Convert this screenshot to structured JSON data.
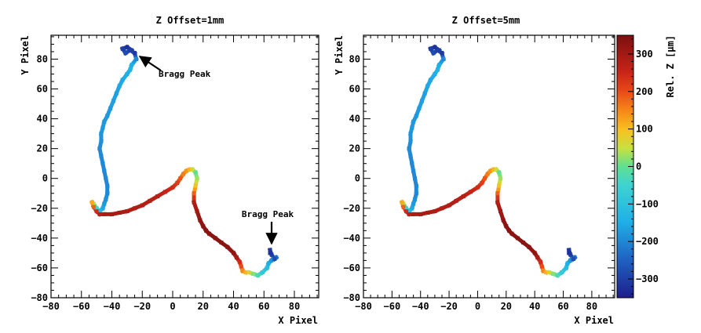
{
  "chart_data": [
    {
      "type": "scatter",
      "title": "Z Offset=1mm",
      "xlabel": "X Pixel",
      "ylabel": "Y Pixel",
      "xlim": [
        -80,
        96
      ],
      "ylim": [
        -80,
        96
      ],
      "xticks": [
        -80,
        -60,
        -40,
        -20,
        0,
        20,
        40,
        60,
        80
      ],
      "yticks": [
        -80,
        -60,
        -40,
        -20,
        0,
        20,
        40,
        60,
        80
      ],
      "grid": false,
      "track": {
        "x": [
          -27,
          -30,
          -33,
          -31,
          -28,
          -25,
          -24,
          -27,
          -28,
          -30,
          -33,
          -35,
          -37,
          -39,
          -41,
          -43,
          -45,
          -46,
          -47,
          -47,
          -48,
          -47,
          -46,
          -45,
          -44,
          -43,
          -43,
          -44,
          -45,
          -46,
          -48,
          -50,
          -52,
          -53,
          -52,
          -50,
          -48,
          -45,
          -40,
          -35,
          -30,
          -25,
          -20,
          -15,
          -10,
          -5,
          0,
          3,
          5,
          7,
          9,
          11,
          13,
          15,
          16,
          15,
          14,
          14,
          16,
          18,
          20,
          22,
          24,
          28,
          32,
          36,
          40,
          42,
          44,
          45,
          46,
          48,
          50,
          53,
          56,
          59,
          62,
          63,
          65,
          66,
          68,
          67,
          65,
          64,
          64
        ],
        "y": [
          86,
          88,
          87,
          84,
          86,
          84,
          80,
          76,
          73,
          70,
          66,
          62,
          57,
          52,
          47,
          42,
          38,
          34,
          30,
          25,
          20,
          15,
          10,
          5,
          0,
          -5,
          -10,
          -14,
          -17,
          -20,
          -22,
          -20,
          -17,
          -16,
          -19,
          -22,
          -24,
          -24,
          -24,
          -23,
          -22,
          -20,
          -18,
          -15,
          -12,
          -9,
          -6,
          -3,
          0,
          3,
          5,
          6,
          6,
          4,
          0,
          -5,
          -10,
          -16,
          -22,
          -28,
          -32,
          -35,
          -37,
          -40,
          -43,
          -46,
          -50,
          -53,
          -56,
          -59,
          -62,
          -63,
          -63,
          -64,
          -65,
          -63,
          -60,
          -57,
          -55,
          -54,
          -53,
          -54,
          -51,
          -48,
          -50
        ],
        "rel_z": [
          -300,
          -320,
          -300,
          -280,
          -300,
          -310,
          -200,
          -150,
          -140,
          -150,
          -160,
          -160,
          -170,
          -170,
          -175,
          -180,
          -180,
          -180,
          -185,
          -190,
          -195,
          -200,
          -200,
          -200,
          -200,
          -200,
          -200,
          -190,
          -180,
          -160,
          -120,
          -60,
          40,
          120,
          180,
          240,
          270,
          285,
          290,
          290,
          285,
          280,
          280,
          275,
          270,
          255,
          240,
          215,
          190,
          160,
          140,
          110,
          60,
          0,
          30,
          90,
          180,
          280,
          300,
          320,
          330,
          330,
          330,
          330,
          330,
          330,
          320,
          290,
          240,
          200,
          150,
          110,
          70,
          20,
          -30,
          -80,
          -120,
          -150,
          -180,
          -200,
          -230,
          -280,
          -300,
          -310,
          -320
        ]
      },
      "annotations": [
        {
          "text": "Bragg Peak",
          "target_x": -25,
          "target_y": 83
        },
        {
          "text": "Bragg Peak",
          "target_x": 65,
          "target_y": -47
        }
      ]
    },
    {
      "type": "scatter",
      "title": "Z Offset=5mm",
      "xlabel": "X Pixel",
      "ylabel": "Y Pixel",
      "xlim": [
        -80,
        96
      ],
      "ylim": [
        -80,
        96
      ],
      "xticks": [
        -80,
        -60,
        -40,
        -20,
        0,
        20,
        40,
        60,
        80
      ],
      "yticks": [
        -80,
        -60,
        -40,
        -20,
        0,
        20,
        40,
        60,
        80
      ],
      "grid": false,
      "track": {
        "x": [
          -27,
          -30,
          -33,
          -31,
          -28,
          -25,
          -24,
          -27,
          -28,
          -30,
          -33,
          -35,
          -37,
          -39,
          -41,
          -43,
          -45,
          -46,
          -47,
          -47,
          -48,
          -47,
          -46,
          -45,
          -44,
          -43,
          -43,
          -44,
          -45,
          -46,
          -48,
          -50,
          -52,
          -53,
          -52,
          -50,
          -48,
          -45,
          -40,
          -35,
          -30,
          -25,
          -20,
          -15,
          -10,
          -5,
          0,
          3,
          5,
          7,
          9,
          11,
          13,
          15,
          16,
          15,
          14,
          14,
          16,
          18,
          20,
          22,
          24,
          28,
          32,
          36,
          40,
          42,
          44,
          45,
          46,
          48,
          50,
          53,
          56,
          59,
          62,
          63,
          65,
          66,
          68,
          67,
          65,
          64,
          64
        ],
        "y": [
          86,
          88,
          87,
          84,
          86,
          84,
          80,
          76,
          73,
          70,
          66,
          62,
          57,
          52,
          47,
          42,
          38,
          34,
          30,
          25,
          20,
          15,
          10,
          5,
          0,
          -5,
          -10,
          -14,
          -17,
          -20,
          -22,
          -20,
          -17,
          -16,
          -19,
          -22,
          -24,
          -24,
          -24,
          -23,
          -22,
          -20,
          -18,
          -15,
          -12,
          -9,
          -6,
          -3,
          0,
          3,
          5,
          6,
          6,
          4,
          0,
          -5,
          -10,
          -16,
          -22,
          -28,
          -32,
          -35,
          -37,
          -40,
          -43,
          -46,
          -50,
          -53,
          -56,
          -59,
          -62,
          -63,
          -63,
          -64,
          -65,
          -63,
          -60,
          -57,
          -55,
          -54,
          -53,
          -54,
          -51,
          -48,
          -50
        ],
        "rel_z": [
          -300,
          -320,
          -300,
          -280,
          -300,
          -310,
          -200,
          -150,
          -140,
          -150,
          -160,
          -160,
          -170,
          -170,
          -175,
          -180,
          -180,
          -180,
          -185,
          -190,
          -195,
          -200,
          -200,
          -200,
          -200,
          -200,
          -200,
          -190,
          -180,
          -160,
          -120,
          -60,
          40,
          120,
          180,
          240,
          270,
          285,
          290,
          290,
          285,
          280,
          280,
          275,
          270,
          255,
          240,
          215,
          190,
          160,
          140,
          110,
          60,
          0,
          30,
          90,
          180,
          280,
          300,
          320,
          330,
          330,
          330,
          330,
          330,
          330,
          320,
          290,
          240,
          200,
          150,
          110,
          70,
          20,
          -30,
          -80,
          -120,
          -150,
          -180,
          -200,
          -230,
          -280,
          -300,
          -310,
          -320
        ]
      },
      "colorbar": {
        "label": "Rel. Z [µm]",
        "range": [
          -350,
          350
        ],
        "ticks": [
          -300,
          -200,
          -100,
          0,
          100,
          200,
          300
        ]
      }
    }
  ]
}
